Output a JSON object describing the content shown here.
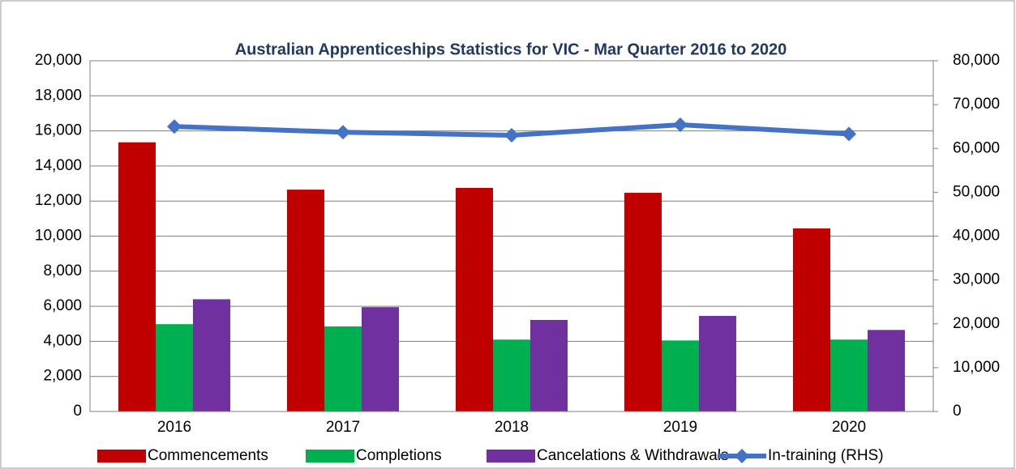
{
  "chart_data": {
    "type": "bar",
    "title": "Australian Apprenticeships Statistics for VIC - Mar Quarter  2016 to 2020",
    "categories": [
      "2016",
      "2017",
      "2018",
      "2019",
      "2020"
    ],
    "series": [
      {
        "name": "Commencements",
        "color": "#c00000",
        "values": [
          15350,
          12650,
          12750,
          12470,
          10440
        ]
      },
      {
        "name": "Completions",
        "color": "#00b050",
        "values": [
          4980,
          4850,
          4100,
          4050,
          4100
        ]
      },
      {
        "name": "Cancelations & Withdrawals",
        "color": "#7030a0",
        "values": [
          6400,
          5950,
          5220,
          5450,
          4650
        ]
      },
      {
        "name": "In-training (RHS)",
        "color": "#4472c4",
        "type": "line",
        "axis": "y2",
        "values": [
          65000,
          63700,
          63000,
          65400,
          63300
        ]
      }
    ],
    "ylim": [
      0,
      20000
    ],
    "yticks": [
      0,
      {
        "value": 2000,
        "label": "2,000"
      },
      {
        "value": 4000,
        "label": "4,000"
      },
      {
        "value": 6000,
        "label": "6,000"
      },
      {
        "value": 8000,
        "label": "8,000"
      },
      {
        "value": 10000,
        "label": "10,000"
      },
      {
        "value": 12000,
        "label": "12,000"
      },
      {
        "value": 14000,
        "label": "14,000"
      },
      {
        "value": 16000,
        "label": "16,000"
      },
      {
        "value": 18000,
        "label": "18,000"
      },
      {
        "value": 20000,
        "label": "20,000"
      }
    ],
    "y2lim": [
      0,
      80000
    ],
    "y2ticks": [
      0,
      {
        "value": 10000,
        "label": "10,000"
      },
      {
        "value": 20000,
        "label": "20,000"
      },
      {
        "value": 30000,
        "label": "30,000"
      },
      {
        "value": 40000,
        "label": "40,000"
      },
      {
        "value": 50000,
        "label": "50,000"
      },
      {
        "value": 60000,
        "label": "60,000"
      },
      {
        "value": 70000,
        "label": "70,000"
      },
      {
        "value": 80000,
        "label": "80,000"
      }
    ],
    "grid": true,
    "legend": "bottom"
  }
}
